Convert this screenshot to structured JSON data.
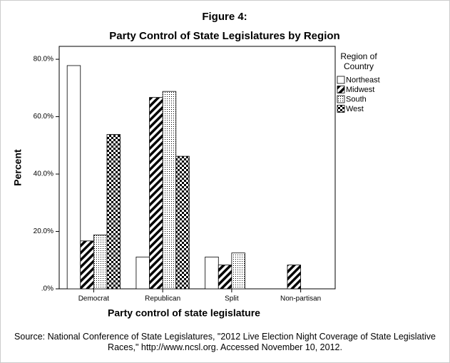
{
  "chart_data": {
    "type": "bar",
    "title": "Figure 4:",
    "subtitle": "Party Control of State Legislatures by Region",
    "x_label": "Party control of state legislature",
    "y_label": "Percent",
    "legend_title": "Region of Country",
    "source": "Source: National Conference of State Legislatures, \"2012 Live Election Night Coverage of State Legislative Races,\"  http://www.ncsl.org. Accessed November 10, 2012.",
    "categories": [
      "Democrat",
      "Republican",
      "Split",
      "Non-partisan"
    ],
    "series": [
      {
        "name": "Northeast",
        "color": "#ffffff",
        "pattern": "none",
        "values": [
          77.8,
          11.1,
          11.1,
          0
        ]
      },
      {
        "name": "Midwest",
        "color": "#000000",
        "pattern": "diagonal",
        "values": [
          16.7,
          66.7,
          8.3,
          8.3
        ]
      },
      {
        "name": "South",
        "color": "#000000",
        "pattern": "dots",
        "values": [
          18.8,
          68.8,
          12.5,
          0
        ]
      },
      {
        "name": "West",
        "color": "#000000",
        "pattern": "checker",
        "values": [
          53.8,
          46.2,
          0,
          0
        ]
      }
    ],
    "ylim": [
      0,
      84.5
    ],
    "yticks": [
      {
        "value": 0,
        "label": ".0%"
      },
      {
        "value": 20,
        "label": "20.0%"
      },
      {
        "value": 40,
        "label": "40.0%"
      },
      {
        "value": 60,
        "label": "60.0%"
      },
      {
        "value": 80,
        "label": "80.0%"
      }
    ],
    "legend": "right",
    "grid": false
  }
}
